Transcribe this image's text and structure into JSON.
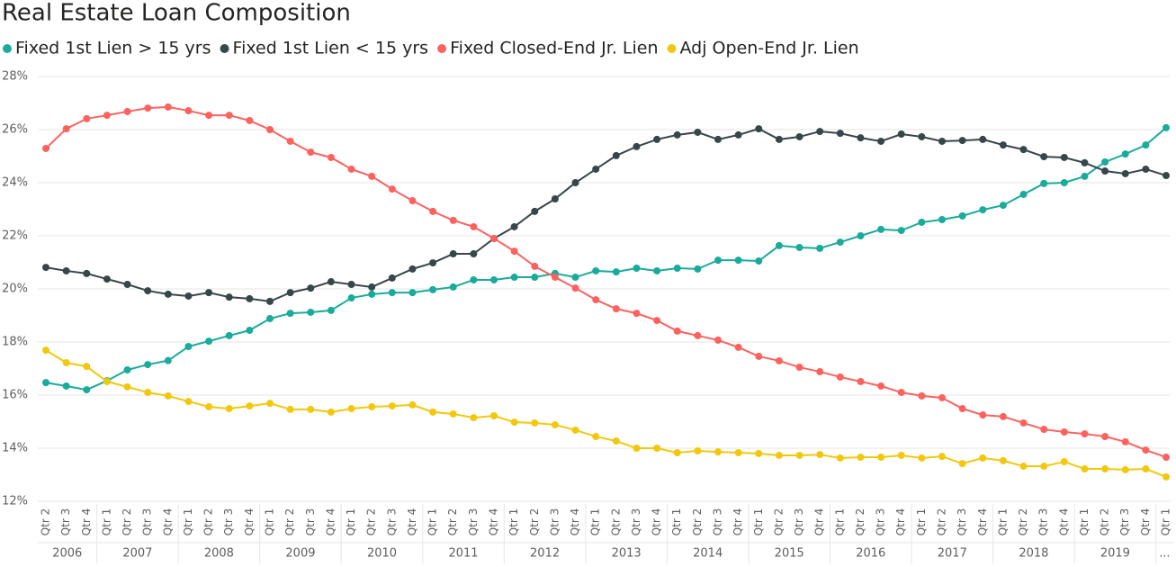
{
  "chart_data": {
    "type": "line",
    "title": "Real Estate Loan Composition",
    "categories": [
      "Qtr 2",
      "Qtr 3",
      "Qtr 4",
      "Qtr 1",
      "Qtr 2",
      "Qtr 3",
      "Qtr 4",
      "Qtr 1",
      "Qtr 2",
      "Qtr 3",
      "Qtr 4",
      "Qtr 1",
      "Qtr 2",
      "Qtr 3",
      "Qtr 4",
      "Qtr 1",
      "Qtr 2",
      "Qtr 3",
      "Qtr 4",
      "Qtr 1",
      "Qtr 2",
      "Qtr 3",
      "Qtr 4",
      "Qtr 1",
      "Qtr 2",
      "Qtr 3",
      "Qtr 4",
      "Qtr 1",
      "Qtr 2",
      "Qtr 3",
      "Qtr 4",
      "Qtr 1",
      "Qtr 2",
      "Qtr 3",
      "Qtr 4",
      "Qtr 1",
      "Qtr 2",
      "Qtr 3",
      "Qtr 4",
      "Qtr 1",
      "Qtr 2",
      "Qtr 3",
      "Qtr 4",
      "Qtr 1",
      "Qtr 2",
      "Qtr 3",
      "Qtr 4",
      "Qtr 1",
      "Qtr 2",
      "Qtr 3",
      "Qtr 4",
      "Qtr 1",
      "Qtr 2",
      "Qtr 3",
      "Qtr 4",
      "Qtr 1"
    ],
    "category_groups": [
      "2006",
      "2007",
      "2008",
      "2009",
      "2010",
      "2011",
      "2012",
      "2013",
      "2014",
      "2015",
      "2016",
      "2017",
      "2018",
      "2019",
      "..."
    ],
    "series": [
      {
        "name": "Fixed 1st Lien > 15 yrs",
        "color": "#1aab9b",
        "values": [
          16.47,
          16.34,
          16.2,
          16.54,
          16.95,
          17.15,
          17.3,
          17.83,
          18.03,
          18.24,
          18.44,
          18.88,
          19.08,
          19.12,
          19.19,
          19.66,
          19.8,
          19.86,
          19.86,
          19.97,
          20.07,
          20.34,
          20.34,
          20.44,
          20.44,
          20.58,
          20.44,
          20.68,
          20.64,
          20.78,
          20.68,
          20.78,
          20.75,
          21.08,
          21.08,
          21.05,
          21.63,
          21.56,
          21.53,
          21.76,
          22.0,
          22.24,
          22.2,
          22.51,
          22.61,
          22.75,
          22.98,
          23.15,
          23.56,
          23.97,
          24.0,
          24.24,
          24.78,
          25.08,
          25.42,
          26.07
        ]
      },
      {
        "name": "Fixed 1st Lien  < 15 yrs",
        "color": "#374649",
        "values": [
          20.81,
          20.68,
          20.58,
          20.37,
          20.17,
          19.93,
          19.8,
          19.73,
          19.86,
          19.69,
          19.63,
          19.53,
          19.86,
          20.03,
          20.27,
          20.17,
          20.07,
          20.41,
          20.75,
          20.98,
          21.32,
          21.32,
          21.9,
          22.34,
          22.92,
          23.39,
          24.0,
          24.51,
          25.02,
          25.36,
          25.63,
          25.8,
          25.9,
          25.63,
          25.8,
          26.03,
          25.63,
          25.73,
          25.93,
          25.86,
          25.69,
          25.56,
          25.83,
          25.73,
          25.56,
          25.59,
          25.63,
          25.42,
          25.25,
          24.98,
          24.95,
          24.75,
          24.44,
          24.34,
          24.51,
          24.27
        ]
      },
      {
        "name": "Fixed Closed-End Jr. Lien",
        "color": "#fd625e",
        "values": [
          25.29,
          26.03,
          26.41,
          26.54,
          26.68,
          26.81,
          26.85,
          26.71,
          26.54,
          26.54,
          26.34,
          26.0,
          25.56,
          25.15,
          24.95,
          24.51,
          24.24,
          23.76,
          23.32,
          22.92,
          22.58,
          22.34,
          21.9,
          21.42,
          20.85,
          20.44,
          20.03,
          19.59,
          19.25,
          19.08,
          18.81,
          18.41,
          18.24,
          18.07,
          17.8,
          17.46,
          17.29,
          17.05,
          16.88,
          16.68,
          16.51,
          16.34,
          16.1,
          15.97,
          15.9,
          15.49,
          15.25,
          15.19,
          14.95,
          14.71,
          14.61,
          14.54,
          14.44,
          14.24,
          13.93,
          13.66
        ]
      },
      {
        "name": "Adj Open-End Jr. Lien",
        "color": "#f2c80f",
        "values": [
          17.69,
          17.22,
          17.08,
          16.51,
          16.31,
          16.1,
          15.97,
          15.76,
          15.56,
          15.49,
          15.59,
          15.69,
          15.46,
          15.46,
          15.36,
          15.49,
          15.56,
          15.59,
          15.63,
          15.36,
          15.29,
          15.15,
          15.22,
          14.98,
          14.95,
          14.88,
          14.68,
          14.44,
          14.27,
          14.0,
          14.0,
          13.83,
          13.9,
          13.86,
          13.83,
          13.8,
          13.73,
          13.73,
          13.76,
          13.63,
          13.66,
          13.66,
          13.73,
          13.63,
          13.69,
          13.42,
          13.63,
          13.53,
          13.32,
          13.32,
          13.49,
          13.22,
          13.22,
          13.19,
          13.22,
          12.92
        ]
      }
    ],
    "ylim": [
      12,
      28
    ],
    "yticks": [
      {
        "value": 12,
        "label": "12%"
      },
      {
        "value": 14,
        "label": "14%"
      },
      {
        "value": 16,
        "label": "16%"
      },
      {
        "value": 18,
        "label": "18%"
      },
      {
        "value": 20,
        "label": "20%"
      },
      {
        "value": 22,
        "label": "22%"
      },
      {
        "value": 24,
        "label": "24%"
      },
      {
        "value": 26,
        "label": "26%"
      },
      {
        "value": 28,
        "label": "28%"
      }
    ],
    "grid": true
  }
}
